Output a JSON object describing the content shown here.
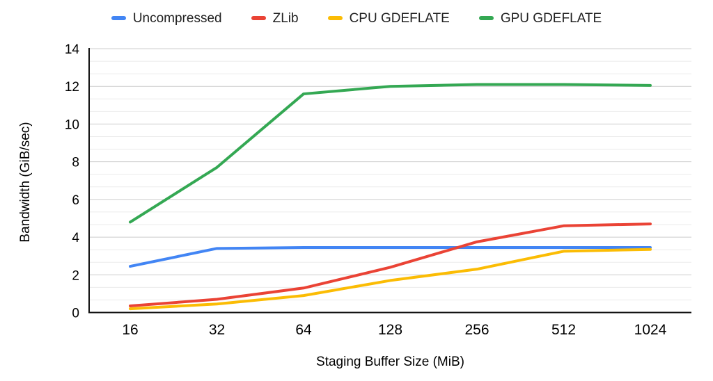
{
  "chart_data": {
    "type": "line",
    "title": "",
    "xlabel": "Staging Buffer Size (MiB)",
    "ylabel": "Bandwidth (GiB/sec)",
    "categories": [
      "16",
      "32",
      "64",
      "128",
      "256",
      "512",
      "1024"
    ],
    "series": [
      {
        "name": "Uncompressed",
        "color": "#4285F4",
        "values": [
          2.45,
          3.4,
          3.45,
          3.45,
          3.45,
          3.45,
          3.45
        ]
      },
      {
        "name": "ZLib",
        "color": "#EA4335",
        "values": [
          0.35,
          0.7,
          1.3,
          2.4,
          3.75,
          4.6,
          4.7
        ]
      },
      {
        "name": "CPU GDEFLATE",
        "color": "#FBBC04",
        "values": [
          0.2,
          0.45,
          0.9,
          1.7,
          2.3,
          3.25,
          3.35
        ]
      },
      {
        "name": "GPU GDEFLATE",
        "color": "#34A853",
        "values": [
          4.8,
          7.7,
          11.6,
          12.0,
          12.1,
          12.1,
          12.05
        ]
      }
    ],
    "ylim": [
      0,
      14
    ],
    "yticks": [
      0,
      2,
      4,
      6,
      8,
      10,
      12,
      14
    ],
    "grid": {
      "major_interval": 2,
      "minors_between_majors": 2
    },
    "legend_position": "top",
    "line_width": 4
  }
}
